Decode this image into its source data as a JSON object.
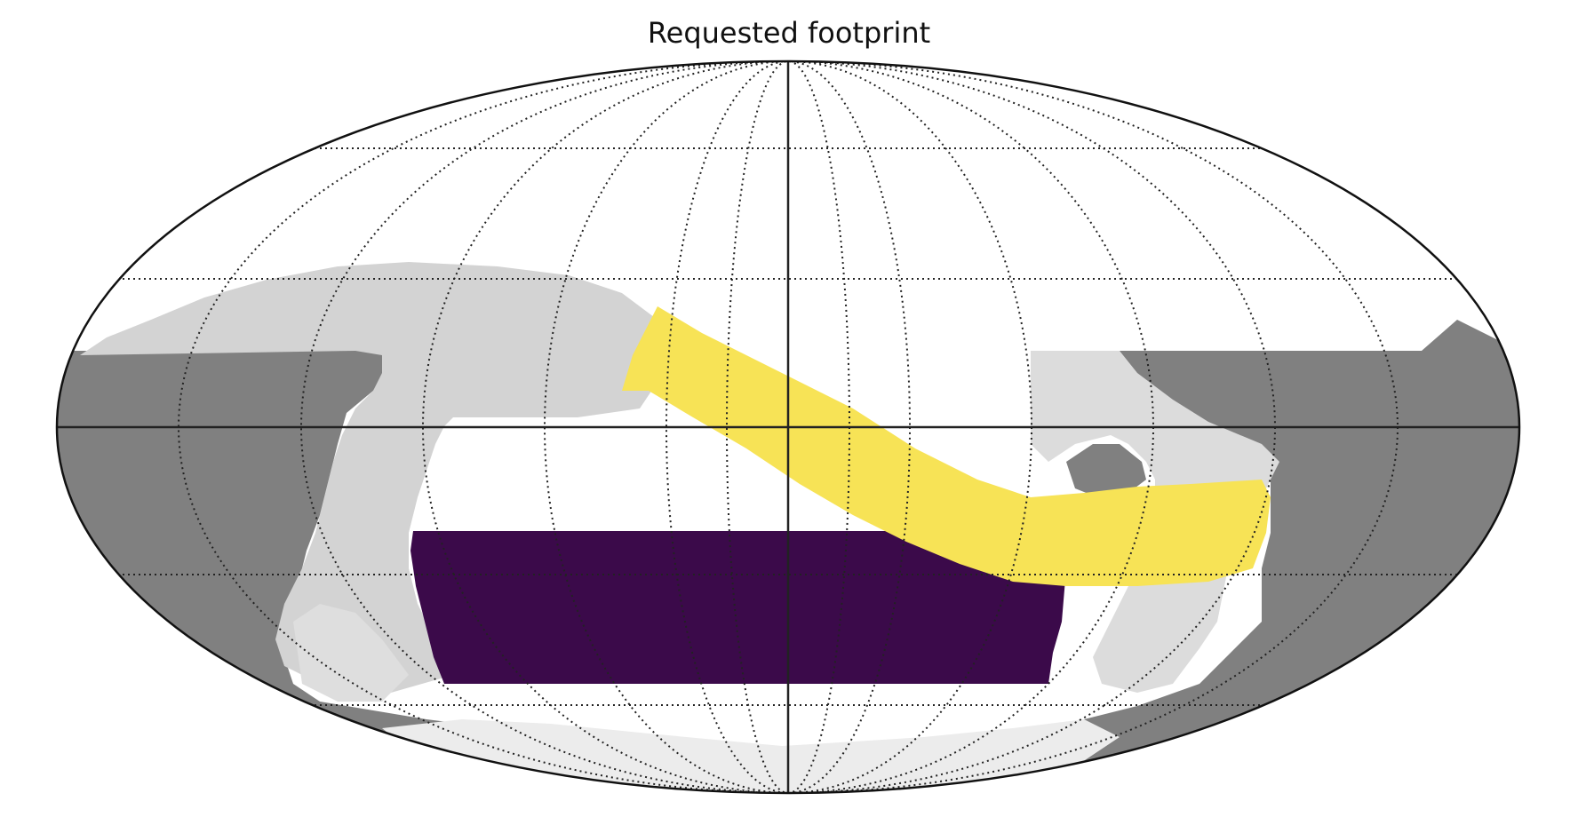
{
  "figure": {
    "title": "Requested footprint"
  },
  "map": {
    "projection": "mollweide",
    "graticule": "dotted",
    "colors": {
      "background": "#ffffff",
      "dark_region": "#808080",
      "light_region": "#d3d3d3",
      "pale_region": "#ececec",
      "purple_region": "#3b0a4a",
      "yellow_region": "#f7e356",
      "outline": "#111111",
      "grid": "#222222"
    },
    "regions": [
      {
        "name": "dark gray base",
        "color_key": "dark_region"
      },
      {
        "name": "light gray band",
        "color_key": "light_region"
      },
      {
        "name": "yellow footprint",
        "color_key": "yellow_region"
      },
      {
        "name": "purple footprint",
        "color_key": "purple_region"
      },
      {
        "name": "pale south polar cap",
        "color_key": "pale_region"
      }
    ]
  }
}
